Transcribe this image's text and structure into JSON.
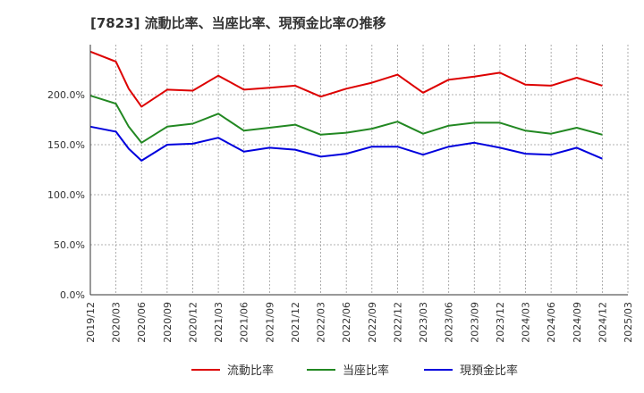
{
  "chart_data": {
    "type": "line",
    "title": "[7823]  流動比率、当座比率、現預金比率の推移",
    "xlabel": "",
    "ylabel": "",
    "ylim": [
      0,
      250
    ],
    "yticks": [
      0,
      50,
      100,
      150,
      200
    ],
    "ytick_labels": [
      "0.0%",
      "50.0%",
      "100.0%",
      "150.0%",
      "200.0%"
    ],
    "x": [
      "2019/12",
      "2020/03",
      "2020/06",
      "2020/09",
      "2020/12",
      "2021/03",
      "2021/06",
      "2021/09",
      "2021/12",
      "2022/03",
      "2022/06",
      "2022/09",
      "2022/12",
      "2023/03",
      "2023/06",
      "2023/09",
      "2023/12",
      "2024/03",
      "2024/06",
      "2024/09",
      "2024/12",
      "2025/03"
    ],
    "grid": true,
    "legend_position": "bottom",
    "series": [
      {
        "name": "流動比率",
        "color": "#dd0000",
        "points": [
          [
            0,
            243
          ],
          [
            1,
            233
          ],
          [
            1.5,
            206
          ],
          [
            2,
            188
          ],
          [
            3,
            205
          ],
          [
            4,
            204
          ],
          [
            5,
            219
          ],
          [
            6,
            205
          ],
          [
            7,
            207
          ],
          [
            8,
            209
          ],
          [
            9,
            198
          ],
          [
            10,
            206
          ],
          [
            11,
            212
          ],
          [
            12,
            220
          ],
          [
            13,
            202
          ],
          [
            14,
            215
          ],
          [
            15,
            218
          ],
          [
            16,
            222
          ],
          [
            17,
            210
          ],
          [
            18,
            209
          ],
          [
            19,
            217
          ],
          [
            20,
            209
          ]
        ]
      },
      {
        "name": "当座比率",
        "color": "#228822",
        "points": [
          [
            0,
            199
          ],
          [
            1,
            191
          ],
          [
            1.5,
            168
          ],
          [
            2,
            152
          ],
          [
            3,
            168
          ],
          [
            4,
            171
          ],
          [
            5,
            181
          ],
          [
            6,
            164
          ],
          [
            7,
            167
          ],
          [
            8,
            170
          ],
          [
            9,
            160
          ],
          [
            10,
            162
          ],
          [
            11,
            166
          ],
          [
            12,
            173
          ],
          [
            13,
            161
          ],
          [
            14,
            169
          ],
          [
            15,
            172
          ],
          [
            16,
            172
          ],
          [
            17,
            164
          ],
          [
            18,
            161
          ],
          [
            19,
            167
          ],
          [
            20,
            160
          ]
        ]
      },
      {
        "name": "現預金比率",
        "color": "#0000dd",
        "points": [
          [
            0,
            168
          ],
          [
            1,
            163
          ],
          [
            1.5,
            146
          ],
          [
            2,
            134
          ],
          [
            3,
            150
          ],
          [
            4,
            151
          ],
          [
            5,
            157
          ],
          [
            6,
            143
          ],
          [
            7,
            147
          ],
          [
            8,
            145
          ],
          [
            9,
            138
          ],
          [
            10,
            141
          ],
          [
            11,
            148
          ],
          [
            12,
            148
          ],
          [
            13,
            140
          ],
          [
            14,
            148
          ],
          [
            15,
            152
          ],
          [
            16,
            147
          ],
          [
            17,
            141
          ],
          [
            18,
            140
          ],
          [
            19,
            147
          ],
          [
            20,
            136
          ]
        ]
      }
    ]
  }
}
